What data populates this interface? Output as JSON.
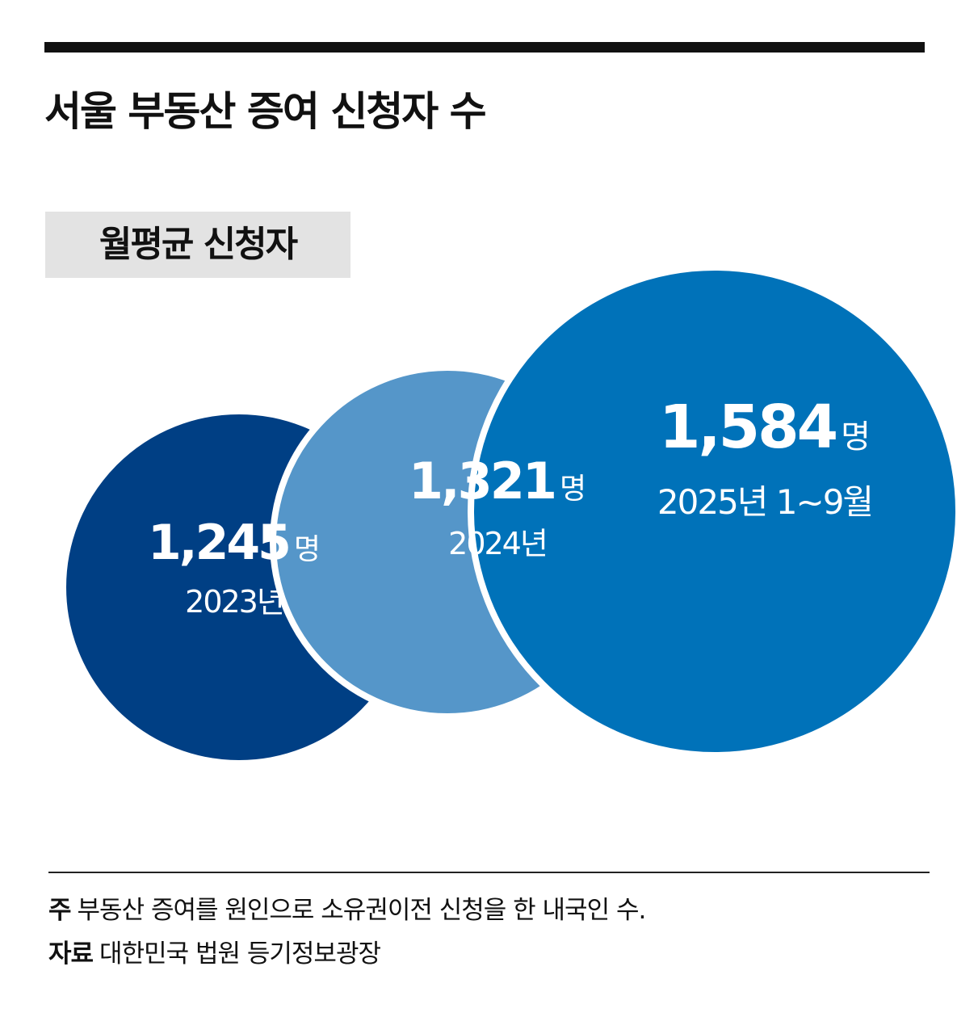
{
  "title": "서울 부동산 증여 신청자 수",
  "subtitle": "월평균 신청자",
  "chart_data": {
    "type": "bubble",
    "unit": "명",
    "series": [
      {
        "period": "2023년",
        "value": 1245,
        "value_label": "1,245",
        "color": "#003f84"
      },
      {
        "period": "2024년",
        "value": 1321,
        "value_label": "1,321",
        "color": "#5596c9"
      },
      {
        "period": "2025년 1~9월",
        "value": 1584,
        "value_label": "1,584",
        "color": "#0072b9"
      }
    ]
  },
  "footer": {
    "note_label": "주",
    "note_text": "부동산 증여를 원인으로 소유권이전 신청을 한 내국인 수.",
    "source_label": "자료",
    "source_text": "대한민국 법원 등기정보광장"
  }
}
